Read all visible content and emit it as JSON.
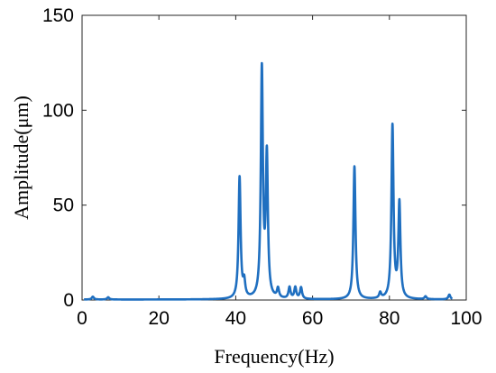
{
  "chart_data": {
    "type": "line",
    "title": "",
    "xlabel": "Frequency(Hz)",
    "ylabel": "Amplitude(μm)",
    "xlim": [
      0,
      100
    ],
    "ylim": [
      0,
      150
    ],
    "xticks": [
      0,
      20,
      40,
      60,
      80,
      100
    ],
    "yticks": [
      0,
      50,
      100,
      150
    ],
    "xtick_labels": [
      "0",
      "20",
      "40",
      "60",
      "80",
      "100"
    ],
    "ytick_labels": [
      "0",
      "50",
      "100",
      "150"
    ],
    "grid": false,
    "line_color": "#1f6fc0",
    "series": [
      {
        "peaks": [
          {
            "x": 2.8,
            "y": 1.5
          },
          {
            "x": 6.8,
            "y": 1.2
          },
          {
            "x": 41.0,
            "y": 64
          },
          {
            "x": 42.2,
            "y": 8
          },
          {
            "x": 46.8,
            "y": 120
          },
          {
            "x": 48.1,
            "y": 74
          },
          {
            "x": 51.0,
            "y": 5
          },
          {
            "x": 54.0,
            "y": 6
          },
          {
            "x": 55.5,
            "y": 6
          },
          {
            "x": 57.0,
            "y": 6
          },
          {
            "x": 70.9,
            "y": 70
          },
          {
            "x": 77.6,
            "y": 3
          },
          {
            "x": 80.8,
            "y": 91
          },
          {
            "x": 82.6,
            "y": 50
          },
          {
            "x": 89.4,
            "y": 1.5
          },
          {
            "x": 95.6,
            "y": 2.5
          }
        ]
      }
    ]
  }
}
